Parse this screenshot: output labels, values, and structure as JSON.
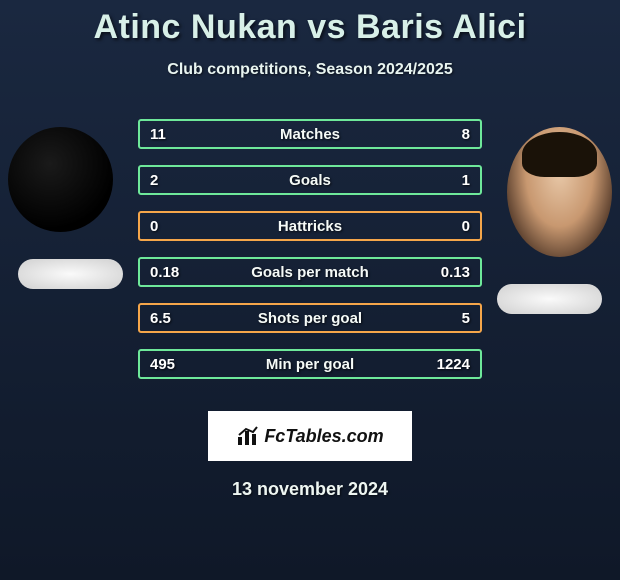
{
  "title": "Atinc Nukan vs Baris Alici",
  "subtitle": "Club competitions, Season 2024/2025",
  "date": "13 november 2024",
  "badge_text": "FcTables.com",
  "stat_rows": [
    {
      "label": "Matches",
      "left": "11",
      "right": "8",
      "color": "#6ee89a"
    },
    {
      "label": "Goals",
      "left": "2",
      "right": "1",
      "color": "#6ee89a"
    },
    {
      "label": "Hattricks",
      "left": "0",
      "right": "0",
      "color": "#f5a64a"
    },
    {
      "label": "Goals per match",
      "left": "0.18",
      "right": "0.13",
      "color": "#6ee89a"
    },
    {
      "label": "Shots per goal",
      "left": "6.5",
      "right": "5",
      "color": "#f5a64a"
    },
    {
      "label": "Min per goal",
      "left": "495",
      "right": "1224",
      "color": "#6ee89a"
    }
  ],
  "style": {
    "title_fontsize": 34,
    "title_color": "#d8f0e8",
    "subtitle_fontsize": 16,
    "stat_row_height": 30,
    "stat_row_gap": 16,
    "stat_fontsize": 15,
    "bg_gradient_top": "#1a2840",
    "bg_gradient_bottom": "#0f1828",
    "badge_bg": "#ffffff",
    "badge_fontsize": 18,
    "date_fontsize": 18,
    "avatar_diameter": 105,
    "country_pill_w": 105,
    "country_pill_h": 30,
    "country_pill_bg": "#fafafa"
  }
}
